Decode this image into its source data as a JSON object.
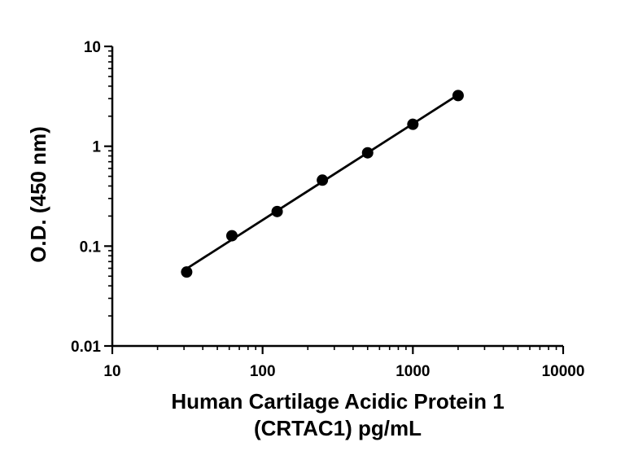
{
  "chart_data": {
    "type": "scatter",
    "title": "",
    "xlabel_lines": [
      "Human Cartilage Acidic Protein 1",
      "(CRTAC1) pg/mL"
    ],
    "ylabel": "O.D. (450 nm)",
    "xscale": "log",
    "yscale": "log",
    "xlim": [
      10,
      10000
    ],
    "ylim": [
      0.01,
      10
    ],
    "x_ticks": [
      10,
      100,
      1000,
      10000
    ],
    "x_tick_labels": [
      "10",
      "100",
      "1000",
      "10000"
    ],
    "y_ticks": [
      0.01,
      0.1,
      1,
      10
    ],
    "y_tick_labels": [
      "0.01",
      "0.1",
      "1",
      "10"
    ],
    "grid": false,
    "fit_line": true,
    "series": [
      {
        "x": [
          31.25,
          62.5,
          125,
          250,
          500,
          1000,
          2000
        ],
        "y": [
          0.055,
          0.127,
          0.222,
          0.458,
          0.86,
          1.66,
          3.22
        ]
      }
    ],
    "colors": {
      "marker": "#000000",
      "line": "#000000",
      "axis": "#000000"
    }
  }
}
